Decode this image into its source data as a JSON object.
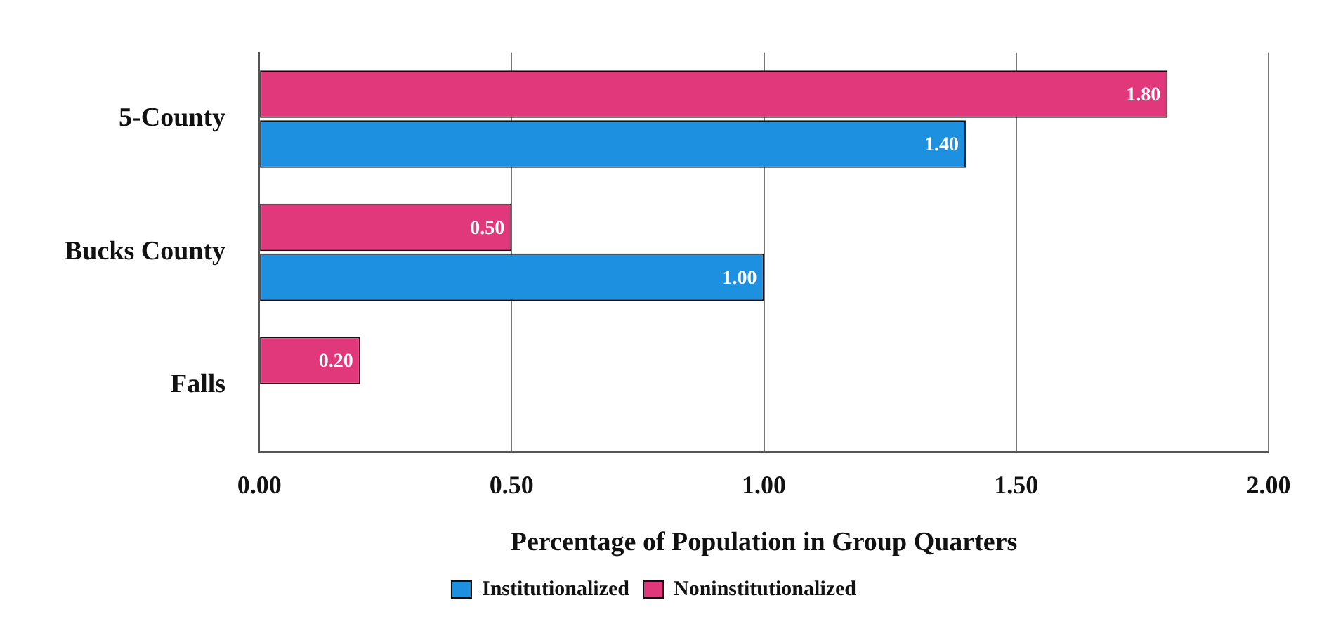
{
  "chart_data": {
    "type": "bar",
    "orientation": "horizontal",
    "xlabel": "Percentage of Population in Group Quarters",
    "categories": [
      "5-County",
      "Bucks County",
      "Falls"
    ],
    "series": [
      {
        "name": "Institutionalized",
        "color": "#1e90e0",
        "values": [
          1.4,
          1.0,
          null
        ],
        "value_labels": [
          "1.40",
          "1.00",
          null
        ]
      },
      {
        "name": "Noninstitutionalized",
        "color": "#e0387a",
        "values": [
          1.8,
          0.5,
          0.2
        ],
        "value_labels": [
          "1.80",
          "0.50",
          "0.20"
        ]
      }
    ],
    "xlim": [
      0,
      2
    ],
    "xticks": [
      {
        "value": 0,
        "label": "0.00"
      },
      {
        "value": 0.5,
        "label": "0.50"
      },
      {
        "value": 1,
        "label": "1.00"
      },
      {
        "value": 1.5,
        "label": "1.50"
      },
      {
        "value": 2,
        "label": "2.00"
      }
    ],
    "grid": "x",
    "legend": "bottom"
  }
}
